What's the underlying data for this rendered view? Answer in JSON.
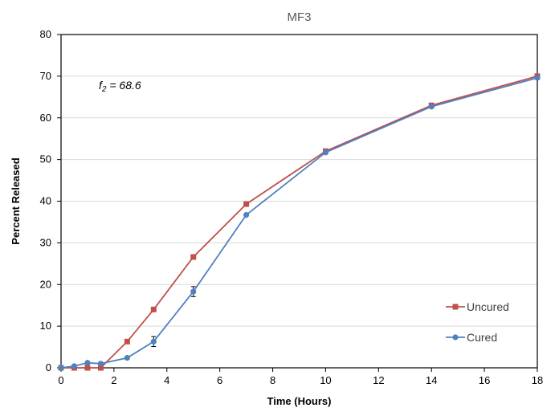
{
  "chart_data": {
    "type": "line",
    "title": "MF3",
    "xlabel": "Time (Hours)",
    "ylabel": "Percent Released",
    "xlim": [
      0,
      18
    ],
    "ylim": [
      0,
      80
    ],
    "xticks": [
      0,
      2,
      4,
      6,
      8,
      10,
      12,
      14,
      16,
      18
    ],
    "yticks": [
      0,
      10,
      20,
      30,
      40,
      50,
      60,
      70,
      80
    ],
    "grid": "horizontal",
    "legend_position": "bottom-right",
    "annotation": {
      "main": "f",
      "sub": "2",
      "value": " = 68.6"
    },
    "series": [
      {
        "name": "Uncured",
        "color": "#c0504d",
        "marker": "square",
        "x": [
          0,
          0.5,
          1,
          1.5,
          2.5,
          3.5,
          5,
          7,
          10,
          14,
          18
        ],
        "y": [
          0,
          0,
          0,
          0,
          6.3,
          14,
          26.6,
          39.3,
          52,
          63,
          70
        ]
      },
      {
        "name": "Cured",
        "color": "#4f81bd",
        "marker": "circle",
        "x": [
          0,
          0.5,
          1,
          1.5,
          2.5,
          3.5,
          5,
          7,
          10,
          14,
          18
        ],
        "y": [
          0,
          0.4,
          1.2,
          1.0,
          2.4,
          6.3,
          18.3,
          36.7,
          51.7,
          62.7,
          69.6
        ],
        "error": [
          0,
          0,
          0,
          0,
          0,
          1.2,
          1.2,
          0,
          0,
          0,
          0
        ]
      }
    ]
  }
}
